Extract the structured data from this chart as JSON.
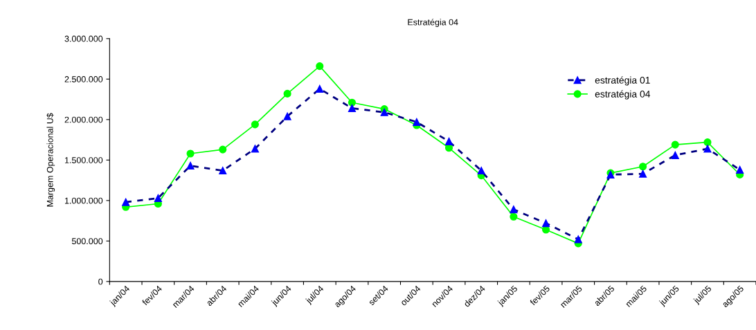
{
  "chart_data": {
    "type": "line",
    "title": "Estratégia 04",
    "ylabel": "Margem Operacional U$",
    "categories": [
      "jan/04",
      "fev/04",
      "mar/04",
      "abr/04",
      "mai/04",
      "jun/04",
      "jul/04",
      "ago/04",
      "set/04",
      "out/04",
      "nov/04",
      "dez/04",
      "jan/05",
      "fev/05",
      "mar/05",
      "abr/05",
      "mai/05",
      "jun/05",
      "jul/05",
      "ago/05"
    ],
    "series": [
      {
        "name": "estratégia 01",
        "color": "#0000ff",
        "marker": "triangle",
        "line_style": "dashed",
        "values": [
          980000,
          1030000,
          1430000,
          1370000,
          1640000,
          2040000,
          2380000,
          2140000,
          2090000,
          1970000,
          1730000,
          1370000,
          890000,
          720000,
          520000,
          1320000,
          1330000,
          1560000,
          1640000,
          1380000
        ]
      },
      {
        "name": "estratégia 04",
        "color": "#00ff00",
        "marker": "circle",
        "line_style": "solid",
        "values": [
          920000,
          960000,
          1580000,
          1630000,
          1940000,
          2320000,
          2660000,
          2210000,
          2130000,
          1930000,
          1650000,
          1310000,
          800000,
          640000,
          470000,
          1340000,
          1420000,
          1690000,
          1720000,
          1320000
        ]
      }
    ],
    "ylim": [
      0,
      3000000
    ],
    "yticks": [
      {
        "value": 0,
        "label": "0"
      },
      {
        "value": 500000,
        "label": "500.000"
      },
      {
        "value": 1000000,
        "label": "1.000.000"
      },
      {
        "value": 1500000,
        "label": "1.500.000"
      },
      {
        "value": 2000000,
        "label": "2.000.000"
      },
      {
        "value": 2500000,
        "label": "2.500.000"
      },
      {
        "value": 3000000,
        "label": "3.000.000"
      }
    ],
    "grid": false,
    "legend": "top right"
  }
}
